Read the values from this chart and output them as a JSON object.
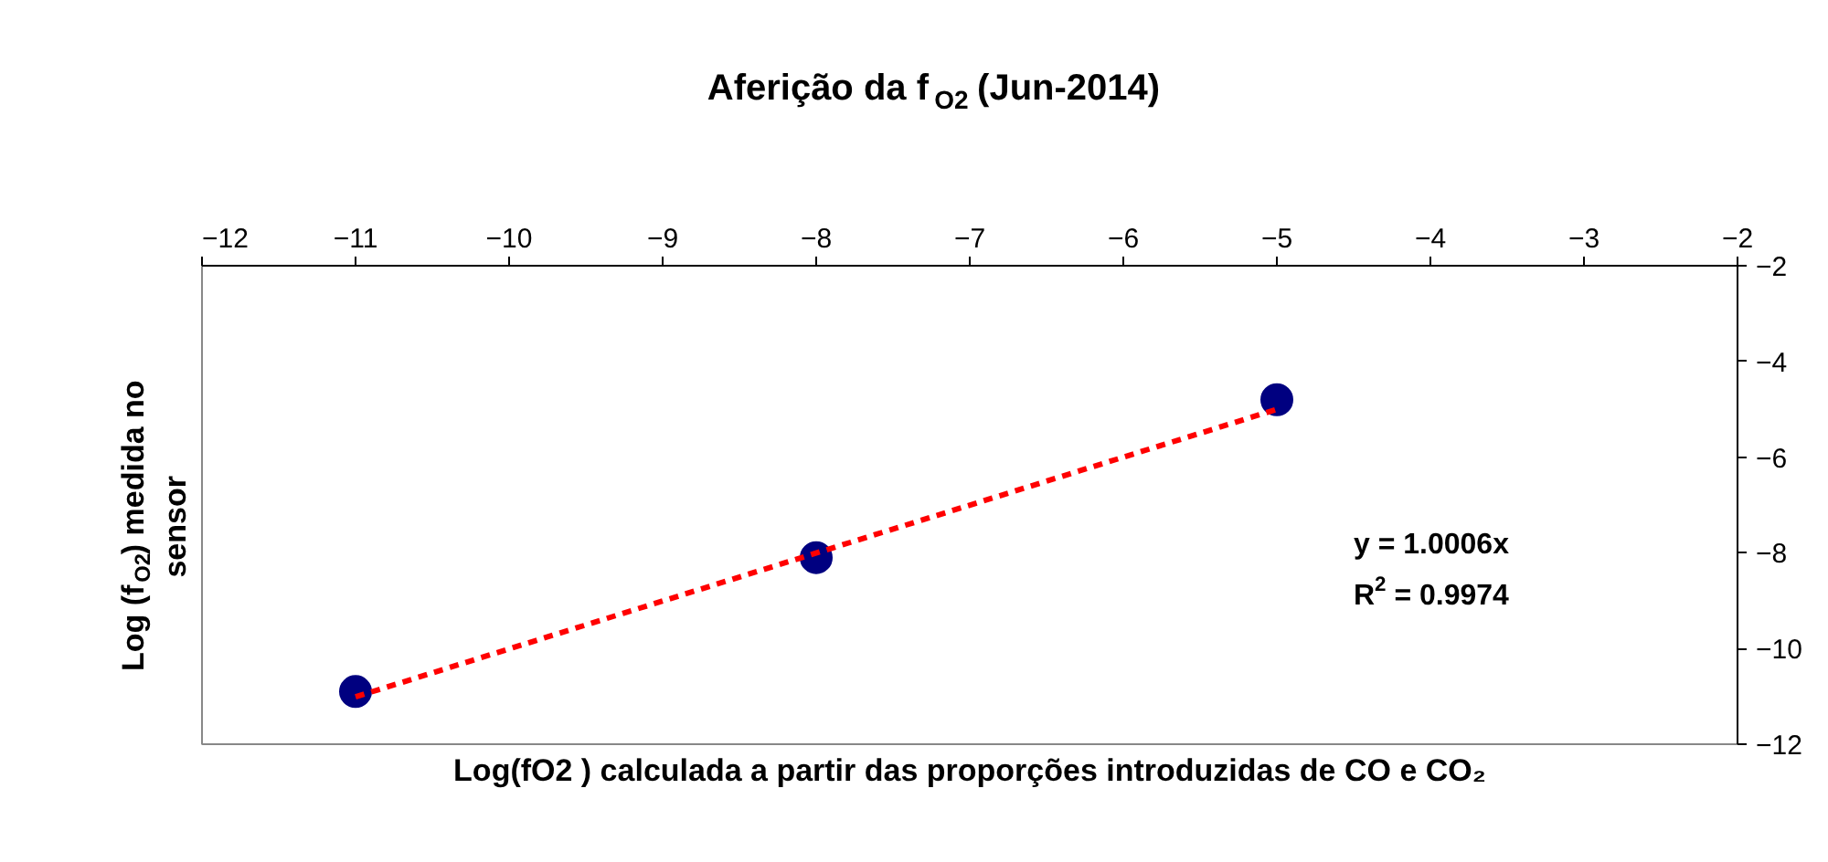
{
  "chart_data": {
    "type": "scatter",
    "title": "Aferição da f$_{O2}$ (Jun-2014)",
    "xlabel": "Log(fO2 ) calculada a partir das proporções introduzidas de CO e CO₂",
    "ylabel": "Log (f$_{O2}$) medida no sensor",
    "x": [
      -11,
      -8,
      -5
    ],
    "series": [
      {
        "color": "#000080",
        "values": [
          -10.9,
          -8.1,
          -4.8
        ],
        "marker": "circle"
      },
      {
        "type": "line",
        "color": "#ff0000",
        "x": [
          -11,
          -5
        ],
        "values": [
          -11.01,
          -5.0
        ],
        "line_style": "dashed",
        "marker": "none"
      }
    ],
    "annotations": [
      "y = 1.0006x",
      "R$^{2}$ = 0.9974"
    ],
    "xlim": [
      -12,
      -2
    ],
    "xticks": [
      -12,
      -11,
      -10,
      -9,
      -8,
      -7,
      -6,
      -5,
      -4,
      -3,
      -2
    ],
    "ylim": [
      -12,
      -2
    ],
    "yticks": [
      -12,
      -10,
      -8,
      -6,
      -4,
      -2
    ],
    "grid": false
  }
}
